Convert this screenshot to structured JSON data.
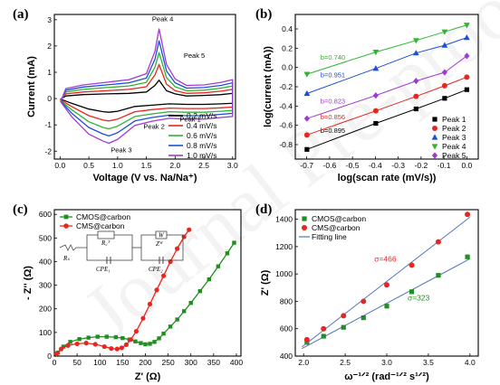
{
  "chart_data": [
    {
      "panel": "(a)",
      "type": "line",
      "xlabel": "Voltage (V vs. Na/Na⁺)",
      "ylabel": "Current (mA)",
      "xlim": [
        -0.1,
        3.05
      ],
      "ylim": [
        -2.3,
        3.2
      ],
      "xticks": [
        0.0,
        0.5,
        1.0,
        1.5,
        2.0,
        2.5,
        3.0
      ],
      "yticks": [
        -2,
        -1,
        0,
        1,
        2,
        3
      ],
      "legend_position": "bottom-right",
      "annotations": [
        {
          "text": "Peak 4",
          "x": 1.6,
          "y": 2.95
        },
        {
          "text": "Peak 5",
          "x": 2.15,
          "y": 1.55
        },
        {
          "text": "Peak 1",
          "x": 2.08,
          "y": -0.88
        },
        {
          "text": "Peak 2",
          "x": 1.45,
          "y": -1.15
        },
        {
          "text": "Peak 3",
          "x": 0.88,
          "y": -2.05
        }
      ],
      "series": [
        {
          "name": "0.2 mV/s",
          "color": "#000000",
          "x": [
            0.01,
            0.2,
            0.5,
            0.75,
            0.85,
            1.0,
            1.3,
            1.6,
            1.9,
            2.2,
            2.5,
            2.8,
            3.0,
            3.0,
            2.8,
            2.5,
            2.2,
            2.0,
            1.85,
            1.72,
            1.65,
            1.5,
            1.2,
            0.8,
            0.4,
            0.1,
            0.01
          ],
          "y": [
            -0.02,
            -0.18,
            -0.4,
            -0.5,
            -0.52,
            -0.48,
            -0.3,
            -0.25,
            -0.2,
            -0.22,
            -0.22,
            -0.2,
            -0.18,
            0.2,
            0.15,
            0.12,
            0.1,
            0.18,
            0.3,
            0.7,
            0.5,
            0.25,
            0.2,
            0.18,
            0.15,
            0.1,
            -0.02
          ]
        },
        {
          "name": "0.4 mV/s",
          "color": "#e8251f",
          "x": [
            0.01,
            0.2,
            0.5,
            0.75,
            0.85,
            1.0,
            1.3,
            1.6,
            1.9,
            2.2,
            2.5,
            2.8,
            3.0,
            3.0,
            2.8,
            2.5,
            2.2,
            2.0,
            1.85,
            1.72,
            1.65,
            1.5,
            1.2,
            0.8,
            0.4,
            0.1,
            0.01
          ],
          "y": [
            -0.05,
            -0.3,
            -0.65,
            -0.82,
            -0.85,
            -0.78,
            -0.5,
            -0.42,
            -0.36,
            -0.38,
            -0.38,
            -0.35,
            -0.32,
            0.35,
            0.28,
            0.22,
            0.2,
            0.3,
            0.55,
            1.3,
            0.9,
            0.45,
            0.35,
            0.3,
            0.25,
            0.18,
            -0.05
          ]
        },
        {
          "name": "0.6 mV/s",
          "color": "#2fb52f",
          "x": [
            0.01,
            0.2,
            0.5,
            0.75,
            0.85,
            1.0,
            1.3,
            1.6,
            1.9,
            2.2,
            2.5,
            2.8,
            3.0,
            3.0,
            2.8,
            2.5,
            2.2,
            2.0,
            1.85,
            1.72,
            1.65,
            1.5,
            1.2,
            0.8,
            0.4,
            0.1,
            0.01
          ],
          "y": [
            -0.08,
            -0.42,
            -0.88,
            -1.1,
            -1.15,
            -1.05,
            -0.68,
            -0.58,
            -0.5,
            -0.52,
            -0.52,
            -0.48,
            -0.45,
            0.48,
            0.4,
            0.32,
            0.3,
            0.45,
            0.8,
            1.75,
            1.2,
            0.62,
            0.48,
            0.42,
            0.35,
            0.25,
            -0.08
          ]
        },
        {
          "name": "0.8 mV/s",
          "color": "#1c4fd8",
          "x": [
            0.01,
            0.2,
            0.5,
            0.75,
            0.85,
            1.0,
            1.3,
            1.6,
            1.9,
            2.2,
            2.5,
            2.8,
            3.0,
            3.0,
            2.8,
            2.5,
            2.2,
            2.0,
            1.85,
            1.72,
            1.65,
            1.5,
            1.2,
            0.8,
            0.4,
            0.1,
            0.01
          ],
          "y": [
            -0.1,
            -0.55,
            -1.1,
            -1.35,
            -1.42,
            -1.3,
            -0.85,
            -0.72,
            -0.63,
            -0.65,
            -0.65,
            -0.6,
            -0.56,
            0.6,
            0.5,
            0.42,
            0.4,
            0.6,
            1.05,
            2.2,
            1.5,
            0.78,
            0.6,
            0.52,
            0.44,
            0.32,
            -0.1
          ]
        },
        {
          "name": "1.0 mV/s",
          "color": "#a13ad3",
          "x": [
            0.01,
            0.2,
            0.5,
            0.75,
            0.85,
            1.0,
            1.3,
            1.6,
            1.9,
            2.2,
            2.5,
            2.8,
            3.0,
            3.0,
            2.8,
            2.5,
            2.2,
            2.0,
            1.85,
            1.72,
            1.65,
            1.5,
            1.2,
            0.8,
            0.4,
            0.1,
            0.01
          ],
          "y": [
            -0.12,
            -0.68,
            -1.35,
            -1.62,
            -1.7,
            -1.55,
            -1.02,
            -0.86,
            -0.75,
            -0.78,
            -0.78,
            -0.72,
            -0.68,
            0.72,
            0.62,
            0.52,
            0.5,
            0.75,
            1.3,
            2.65,
            1.8,
            0.95,
            0.72,
            0.62,
            0.52,
            0.38,
            -0.12
          ]
        }
      ]
    },
    {
      "panel": "(b)",
      "type": "scatter",
      "xlabel": "log(scan rate (mV/s))",
      "ylabel": "log(current (mA))",
      "xlim": [
        -0.75,
        0.05
      ],
      "ylim": [
        -0.95,
        0.55
      ],
      "xticks": [
        -0.7,
        -0.6,
        -0.5,
        -0.4,
        -0.3,
        -0.2,
        -0.1,
        0.0
      ],
      "yticks": [
        -0.8,
        -0.6,
        -0.4,
        -0.2,
        0.0,
        0.2,
        0.4
      ],
      "legend_position": "bottom-right",
      "x": [
        -0.699,
        -0.398,
        -0.222,
        -0.097,
        0.0
      ],
      "series": [
        {
          "name": "Peak 1",
          "color": "#000000",
          "marker": "square",
          "slope_label": "b=0.895",
          "values": [
            -0.85,
            -0.58,
            -0.43,
            -0.32,
            -0.23
          ]
        },
        {
          "name": "Peak 2",
          "color": "#e8251f",
          "marker": "circle",
          "slope_label": "b=0.856",
          "values": [
            -0.7,
            -0.45,
            -0.3,
            -0.19,
            -0.1
          ]
        },
        {
          "name": "Peak 3",
          "color": "#1c4fd8",
          "marker": "triangle",
          "slope_label": "b=0.951",
          "values": [
            -0.27,
            -0.01,
            0.15,
            0.23,
            0.31
          ]
        },
        {
          "name": "Peak 4",
          "color": "#2fb52f",
          "marker": "triangle-down",
          "slope_label": "b=0.740",
          "values": [
            -0.07,
            0.16,
            0.28,
            0.37,
            0.44
          ]
        },
        {
          "name": "Peak 5",
          "color": "#a13ad3",
          "marker": "diamond",
          "slope_label": "b=0.823",
          "values": [
            -0.53,
            -0.29,
            -0.14,
            -0.05,
            0.12
          ]
        }
      ]
    },
    {
      "panel": "(c)",
      "type": "line",
      "xlabel": "Z' (Ω)",
      "ylabel": "- Z'' (Ω)",
      "xlim": [
        0,
        410
      ],
      "ylim": [
        0,
        620
      ],
      "xticks": [
        0,
        50,
        100,
        150,
        200,
        250,
        300,
        350,
        400
      ],
      "yticks": [
        0,
        100,
        200,
        300,
        400,
        500,
        600
      ],
      "legend_position": "top-left",
      "circuit_labels": [
        "Rₛ",
        "R꜀ᵀ",
        "CPE₁",
        "W",
        "Zᵂ",
        "CPE₂"
      ],
      "series": [
        {
          "name": "CMOS@carbon",
          "color": "#1f8f1f",
          "marker": "square",
          "x": [
            8,
            20,
            35,
            55,
            75,
            95,
            115,
            135,
            150,
            165,
            178,
            190,
            200,
            210,
            220,
            230,
            240,
            255,
            270,
            285,
            300,
            320,
            340,
            360,
            380,
            395
          ],
          "y": [
            15,
            40,
            60,
            72,
            78,
            82,
            82,
            80,
            76,
            70,
            62,
            55,
            50,
            52,
            60,
            75,
            95,
            125,
            155,
            190,
            225,
            275,
            325,
            380,
            435,
            480
          ]
        },
        {
          "name": "CMS@carbon",
          "color": "#e8251f",
          "marker": "circle",
          "x": [
            5,
            15,
            30,
            50,
            70,
            90,
            110,
            125,
            138,
            148,
            158,
            168,
            180,
            195,
            210,
            225,
            240,
            255,
            270,
            285,
            296
          ],
          "y": [
            10,
            30,
            45,
            52,
            55,
            50,
            40,
            32,
            30,
            35,
            48,
            70,
            105,
            160,
            220,
            280,
            340,
            400,
            455,
            505,
            535
          ]
        }
      ]
    },
    {
      "panel": "(d)",
      "type": "scatter",
      "xlabel": "ω⁻¹ᐟ² (rad⁻¹ᐟ² s¹ᐟ²)",
      "ylabel": "Z' (Ω)",
      "xlim": [
        1.9,
        4.1
      ],
      "ylim": [
        400,
        1470
      ],
      "xticks": [
        2.0,
        2.5,
        3.0,
        3.5,
        4.0
      ],
      "yticks": [
        400,
        600,
        800,
        1000,
        1200,
        1400
      ],
      "legend_position": "top-left",
      "x": [
        2.04,
        2.24,
        2.48,
        2.72,
        3.0,
        3.3,
        3.62,
        3.97
      ],
      "series": [
        {
          "name": "CMOS@carbon",
          "color": "#1f8f1f",
          "marker": "square",
          "slope_label": "σ=323",
          "values": [
            500,
            545,
            610,
            680,
            765,
            870,
            990,
            1125
          ]
        },
        {
          "name": "CMS@carbon",
          "color": "#e8251f",
          "marker": "circle",
          "slope_label": "σ=466",
          "values": [
            520,
            600,
            695,
            800,
            920,
            1065,
            1235,
            1435
          ]
        }
      ],
      "fit_label": "Fitting line",
      "fit_color": "#5577bb"
    }
  ],
  "watermark": "Journal Pre-proof"
}
